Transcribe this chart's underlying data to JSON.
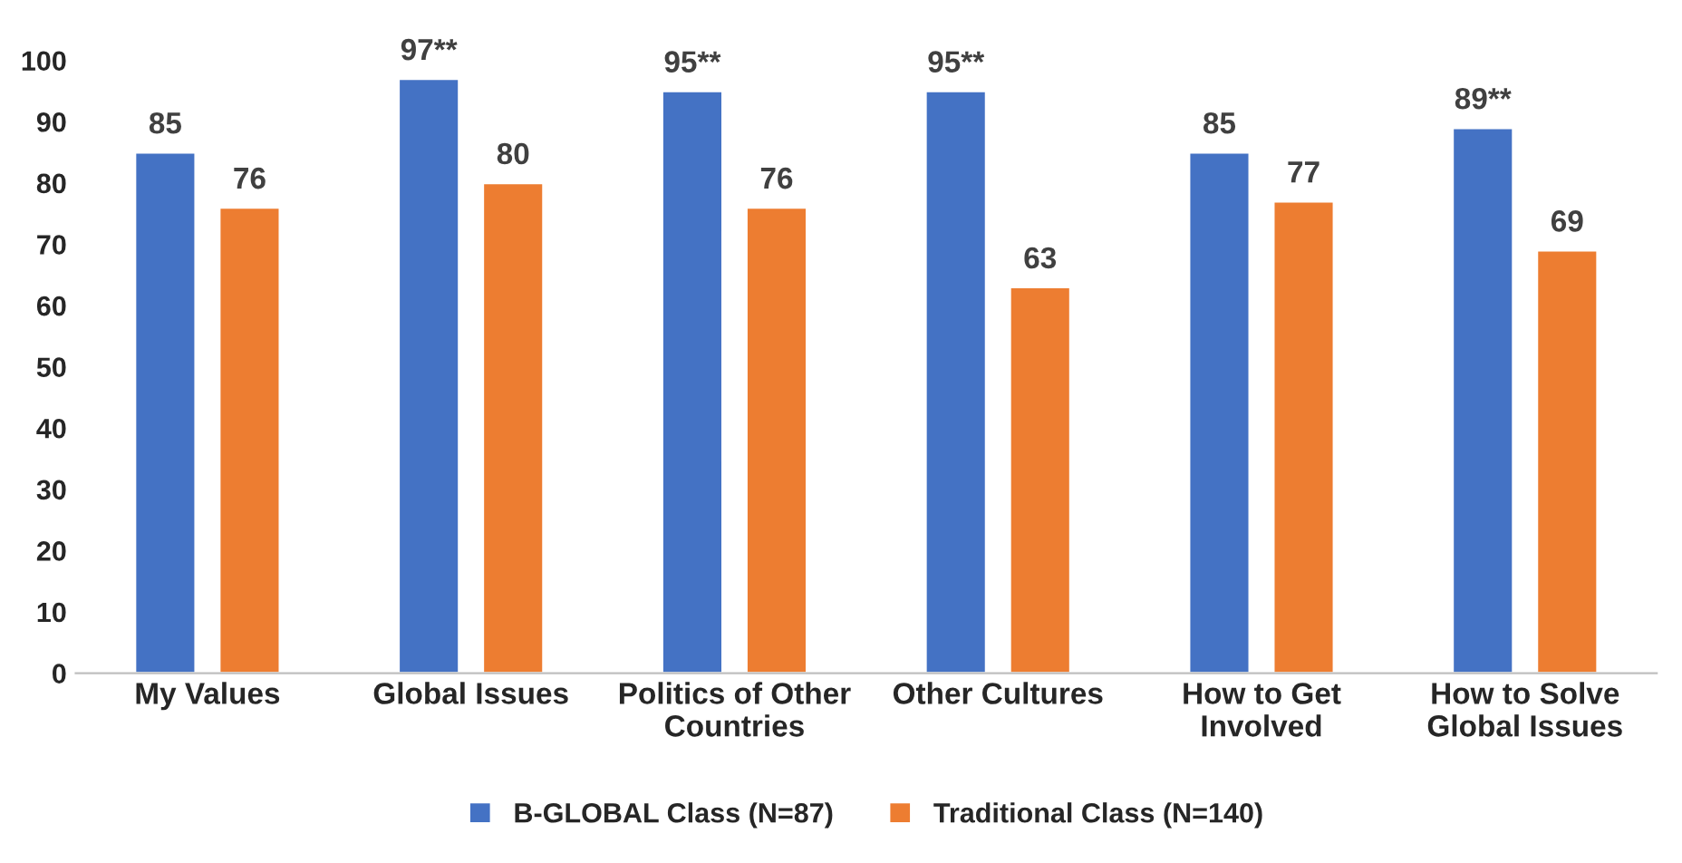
{
  "chart_data": {
    "type": "bar",
    "categories": [
      "My Values",
      "Global Issues",
      "Politics of Other\nCountries",
      "Other Cultures",
      "How to Get\nInvolved",
      "How to Solve\nGlobal Issues"
    ],
    "series": [
      {
        "name": "B-GLOBAL Class (N=87)",
        "color": "#4472c4",
        "values": [
          85,
          97,
          95,
          95,
          85,
          89
        ],
        "value_labels": [
          "85",
          "97**",
          "95**",
          "95**",
          "85",
          "89**"
        ]
      },
      {
        "name": "Traditional Class (N=140)",
        "color": "#ed7d31",
        "values": [
          76,
          80,
          76,
          63,
          77,
          69
        ],
        "value_labels": [
          "76",
          "80",
          "76",
          "63",
          "77",
          "69"
        ]
      }
    ],
    "ylim": [
      0,
      100
    ],
    "yticks": [
      0,
      10,
      20,
      30,
      40,
      50,
      60,
      70,
      80,
      90,
      100
    ],
    "grid": false,
    "legend": "bottom"
  }
}
